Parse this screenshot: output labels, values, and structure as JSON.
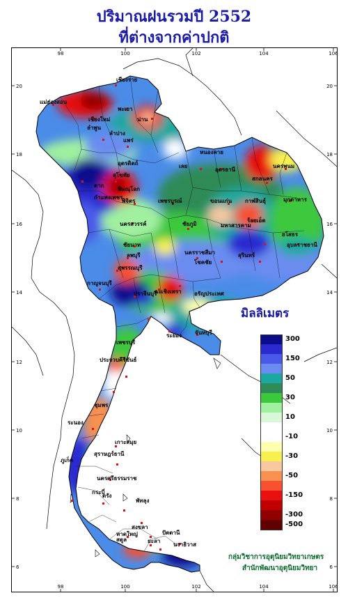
{
  "title_line1": "ปริมาณฝนรวมปี  2552",
  "title_line2": "ที่ต่างจากค่าปกติ",
  "legend": {
    "unit": "มิลลิเมตร",
    "classes": [
      {
        "label": "300",
        "color": "#0b0b8c"
      },
      {
        "label": "",
        "color": "#2a2ad0"
      },
      {
        "label": "150",
        "color": "#4a5ae8"
      },
      {
        "label": "",
        "color": "#6a8cf0"
      },
      {
        "label": "50",
        "color": "#1aa8a0"
      },
      {
        "label": "",
        "color": "#2e8b57"
      },
      {
        "label": "30",
        "color": "#3cc83c"
      },
      {
        "label": "",
        "color": "#a0f0a0"
      },
      {
        "label": "10",
        "color": "#d8f8d8"
      },
      {
        "label": "",
        "color": "#ffffff"
      },
      {
        "label": "-10",
        "color": "#ffffff"
      },
      {
        "label": "",
        "color": "#ffffb0"
      },
      {
        "label": "-30",
        "color": "#f8f050"
      },
      {
        "label": "",
        "color": "#f8c8a0"
      },
      {
        "label": "-50",
        "color": "#f89050"
      },
      {
        "label": "",
        "color": "#f85030"
      },
      {
        "label": "-150",
        "color": "#e81010"
      },
      {
        "label": "",
        "color": "#c00000"
      },
      {
        "label": "-300",
        "color": "#900000"
      },
      {
        "label": "-500",
        "color": "#600000"
      }
    ]
  },
  "axes": {
    "lon_ticks": [
      "98",
      "100",
      "102",
      "104",
      "106"
    ],
    "lat_ticks": [
      "20",
      "18",
      "16",
      "14",
      "12",
      "10",
      "8",
      "6"
    ]
  },
  "places": [
    "เชียงราย",
    "แม่ฮ่องสอน",
    "พะเยา",
    "เชียงใหม่",
    "ลำพูน",
    "น่าน",
    "ลำปาง",
    "แพร่",
    "อุตรดิตถ์",
    "ตาก",
    "สุโขทัย",
    "พิษณุโลก",
    "กำแพงเพชร",
    "พิจิตร",
    "เพชรบูรณ์",
    "นครสวรรค์",
    "เลย",
    "หนองคาย",
    "อุดรธานี",
    "สกลนคร",
    "นครพนม",
    "กาฬสินธุ์",
    "มุกดาหาร",
    "ขอนแก่น",
    "ชัยภูมิ",
    "ร้อยเอ็ด",
    "มหาสารคาม",
    "ยโสธร",
    "อุบลราชธานี",
    "นครราชสีมา",
    "โชคชัย",
    "สุรินทร์",
    "ลพบุรี",
    "ชัยนาท",
    "สุพรรณบุรี",
    "กาญจนบุรี",
    "ปราจีนบุรี",
    "ฉะเชิงเทรา",
    "อรัญประเทศ",
    "เพชรบุรี",
    "ระยอง",
    "จันทบุรี",
    "ประจวบคีรีขันธ์",
    "ชุมพร",
    "ระนอง",
    "สุราษฎร์ธานี",
    "เกาะสมุย",
    "ภูเก็ต",
    "นครศรีธรรมราช",
    "กระบี่",
    "ตรัง",
    "พัทลุง",
    "สงขลา",
    "หาดใหญ่",
    "ปัตตานี",
    "นราธิวาส",
    "สตูล",
    "ยะลา"
  ],
  "credit_line1": "กลุ่มวิชาการอุตุนิยมวิทยาเกษตร",
  "credit_line2": "สำนักพัฒนาอุตุนิยมวิทยา"
}
